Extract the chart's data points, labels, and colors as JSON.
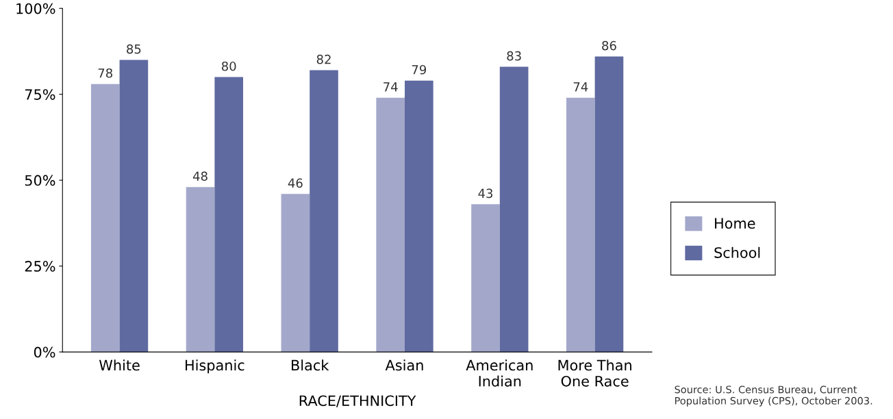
{
  "chart_data": {
    "type": "bar",
    "xlabel": "RACE/ETHNICITY",
    "categories": [
      "White",
      "Hispanic",
      "Black",
      "Asian",
      "American\nIndian",
      "More Than\nOne Race"
    ],
    "series": [
      {
        "name": "Home",
        "color": "#a3a8cb",
        "values": [
          78,
          48,
          46,
          74,
          43,
          74
        ]
      },
      {
        "name": "School",
        "color": "#5f6aa0",
        "values": [
          85,
          80,
          82,
          79,
          83,
          86
        ]
      }
    ],
    "ylim": [
      0,
      100
    ],
    "yticks": [
      {
        "value": 0,
        "label": "0%"
      },
      {
        "value": 25,
        "label": "25%"
      },
      {
        "value": 50,
        "label": "50%"
      },
      {
        "value": 75,
        "label": "75%"
      },
      {
        "value": 100,
        "label": "100%"
      }
    ],
    "data_labels": true,
    "grid": false,
    "legend": "right",
    "annotations": [
      "Source: U.S. Census Bureau, Current\nPopulation Survey (CPS), October 2003."
    ]
  }
}
